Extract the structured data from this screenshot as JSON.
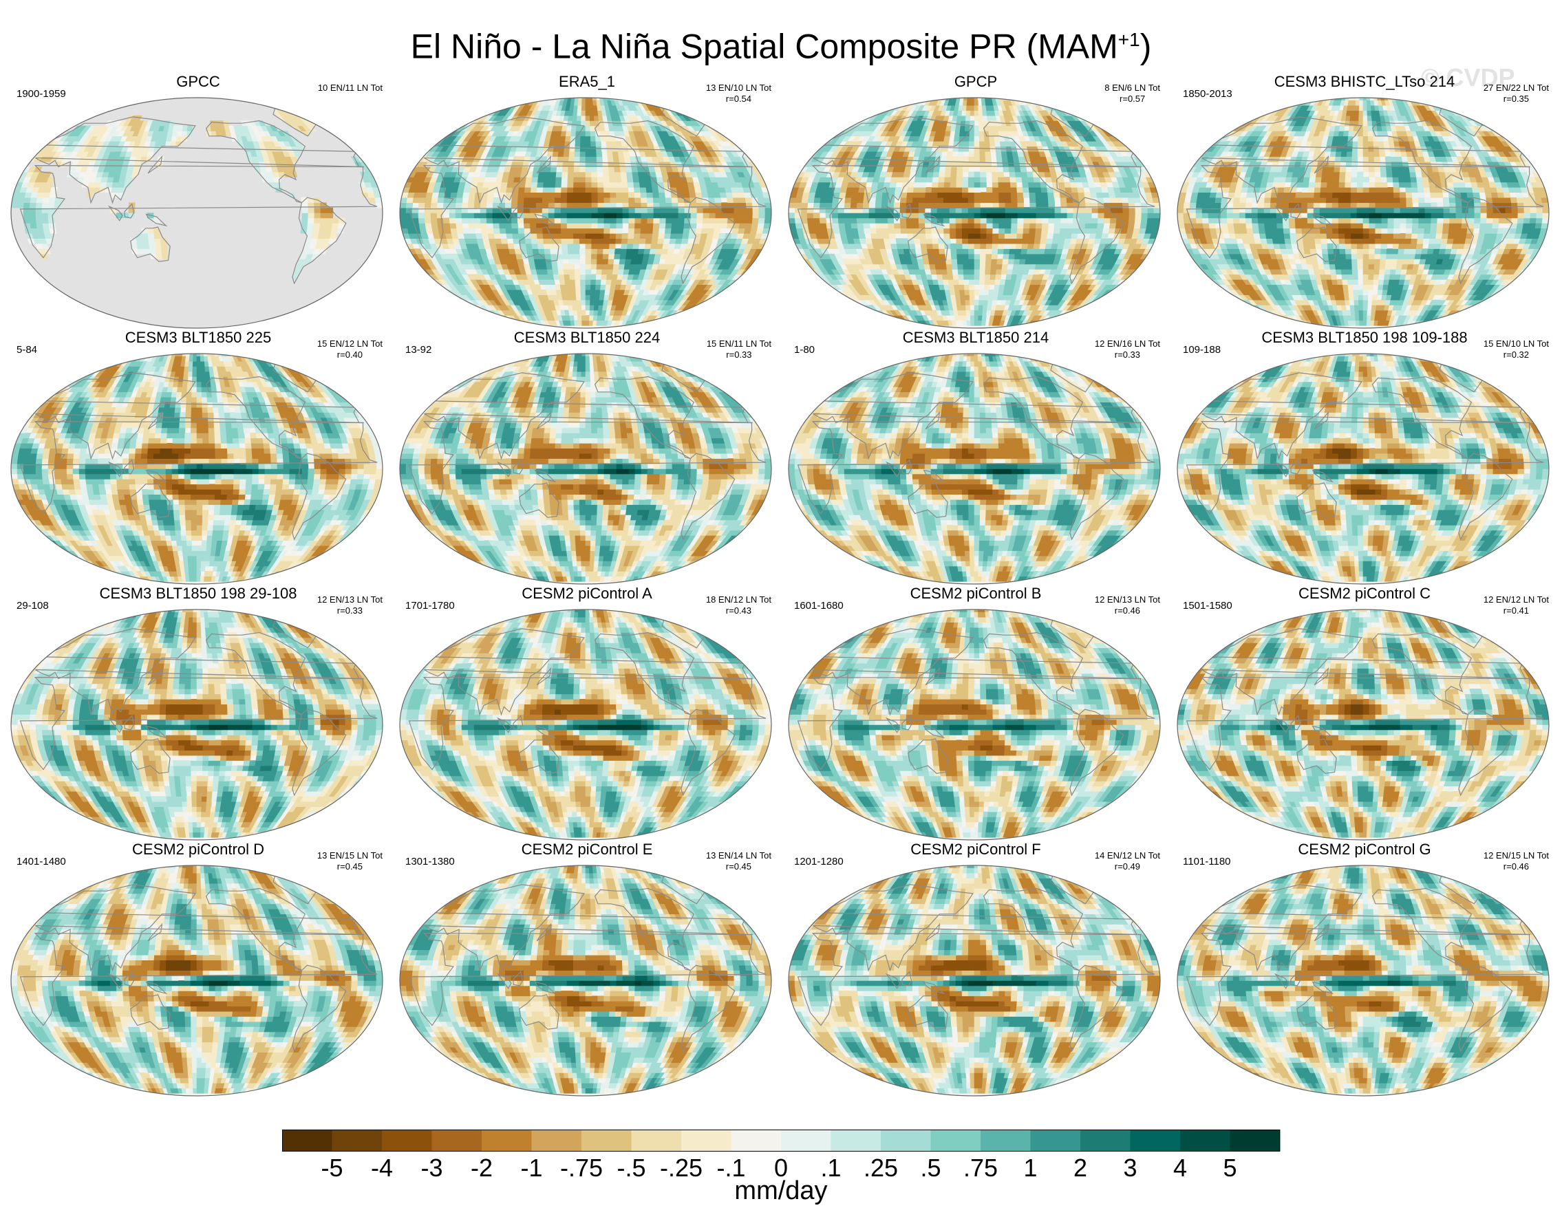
{
  "title": {
    "main": "El Niño - La Niña Spatial Composite PR (MAM",
    "superscript": "+1",
    "close": ")"
  },
  "watermark": "© CVDP",
  "colors": {
    "land_missing": "#e2e2e2",
    "coast": "#8a8a8a",
    "border": "#666666"
  },
  "chart_data": {
    "type": "heatmap",
    "title": "El Niño - La Niña Spatial Composite PR (MAM+1)",
    "colorbar": {
      "label": "mm/day",
      "ticks": [
        "-5",
        "-4",
        "-3",
        "-2",
        "-1",
        "-.75",
        "-.5",
        "-.25",
        "-.1",
        "0",
        ".1",
        ".25",
        ".5",
        ".75",
        "1",
        "2",
        "3",
        "4",
        "5"
      ],
      "colors": [
        "#543005",
        "#6f4309",
        "#8c510a",
        "#a7671e",
        "#bf812d",
        "#d2a55c",
        "#dfc27d",
        "#efdeae",
        "#f6eccc",
        "#f5f3ee",
        "#e6f2f0",
        "#c7eae5",
        "#a5ddd6",
        "#80cdc1",
        "#5ab4ac",
        "#35978f",
        "#1d7d75",
        "#01665e",
        "#004e44",
        "#003c30"
      ]
    },
    "panels": [
      {
        "name": "GPCC",
        "period": "1900-1959",
        "counts": "10 EN/11 LN Tot",
        "r": "",
        "obs_land_only": true,
        "pattern": 0
      },
      {
        "name": "ERA5_1",
        "period": "",
        "counts": "13 EN/10 LN Tot",
        "r": "r=0.54",
        "pattern": 1
      },
      {
        "name": "GPCP",
        "period": "",
        "counts": "8 EN/6 LN Tot",
        "r": "r=0.57",
        "pattern": 2
      },
      {
        "name": "CESM3 BHISTC_LTso 214",
        "period": "1850-2013",
        "counts": "27 EN/22 LN Tot",
        "r": "r=0.35",
        "pattern": 3
      },
      {
        "name": "CESM3 BLT1850 225",
        "period": "5-84",
        "counts": "15 EN/12 LN Tot",
        "r": "r=0.40",
        "pattern": 4
      },
      {
        "name": "CESM3 BLT1850 224",
        "period": "13-92",
        "counts": "15 EN/11 LN Tot",
        "r": "r=0.33",
        "pattern": 5
      },
      {
        "name": "CESM3 BLT1850 214",
        "period": "1-80",
        "counts": "12 EN/16 LN Tot",
        "r": "r=0.33",
        "pattern": 6
      },
      {
        "name": "CESM3 BLT1850 198 109-188",
        "period": "109-188",
        "counts": "15 EN/10 LN Tot",
        "r": "r=0.32",
        "pattern": 7
      },
      {
        "name": "CESM3 BLT1850 198 29-108",
        "period": "29-108",
        "counts": "12 EN/13 LN Tot",
        "r": "r=0.33",
        "pattern": 8
      },
      {
        "name": "CESM2 piControl A",
        "period": "1701-1780",
        "counts": "18 EN/12 LN Tot",
        "r": "r=0.43",
        "pattern": 9
      },
      {
        "name": "CESM2 piControl B",
        "period": "1601-1680",
        "counts": "12 EN/13 LN Tot",
        "r": "r=0.46",
        "pattern": 10
      },
      {
        "name": "CESM2 piControl C",
        "period": "1501-1580",
        "counts": "12 EN/12 LN Tot",
        "r": "r=0.41",
        "pattern": 11
      },
      {
        "name": "CESM2 piControl D",
        "period": "1401-1480",
        "counts": "13 EN/15 LN Tot",
        "r": "r=0.45",
        "pattern": 12
      },
      {
        "name": "CESM2 piControl E",
        "period": "1301-1380",
        "counts": "13 EN/14 LN Tot",
        "r": "r=0.45",
        "pattern": 13
      },
      {
        "name": "CESM2 piControl F",
        "period": "1201-1280",
        "counts": "14 EN/12 LN Tot",
        "r": "r=0.49",
        "pattern": 14
      },
      {
        "name": "CESM2 piControl G",
        "period": "1101-1180",
        "counts": "12 EN/15 LN Tot",
        "r": "r=0.46",
        "pattern": 15
      }
    ]
  }
}
